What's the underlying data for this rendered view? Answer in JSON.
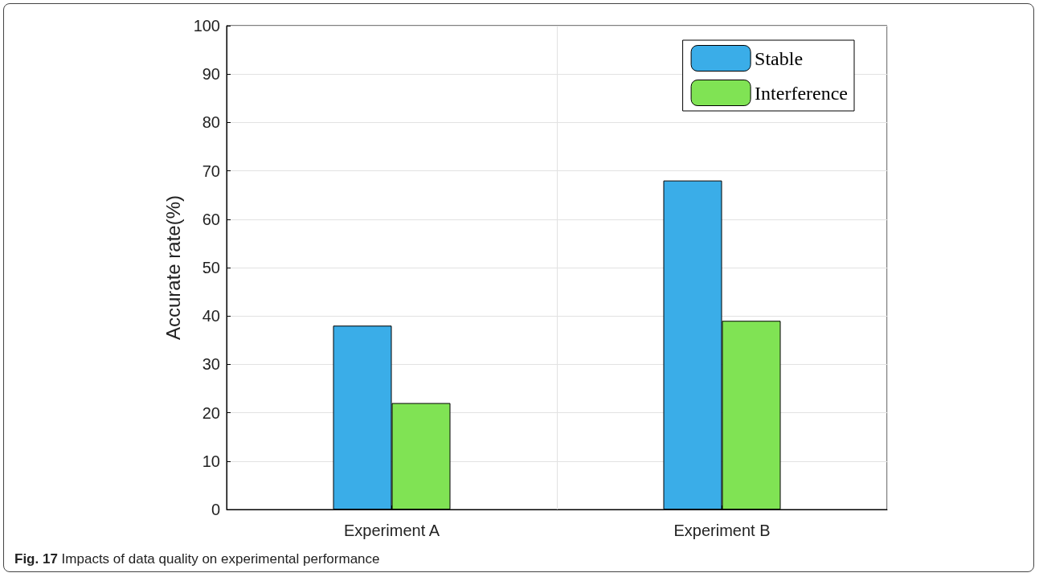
{
  "chart_data": {
    "type": "bar",
    "ylabel": "Accurate rate(%)",
    "categories": [
      "Experiment A",
      "Experiment B"
    ],
    "series": [
      {
        "name": "Stable",
        "color": "#3aade8",
        "values": [
          38,
          68
        ]
      },
      {
        "name": "Interference",
        "color": "#80e354",
        "values": [
          22,
          39
        ]
      }
    ],
    "ylim": [
      0,
      100
    ],
    "yticks": [
      0,
      10,
      20,
      30,
      40,
      50,
      60,
      70,
      80,
      90,
      100
    ],
    "grid": true,
    "legend": "top right",
    "annotations": [
      "Fig. 17 Impacts of data quality on experimental performance"
    ]
  }
}
